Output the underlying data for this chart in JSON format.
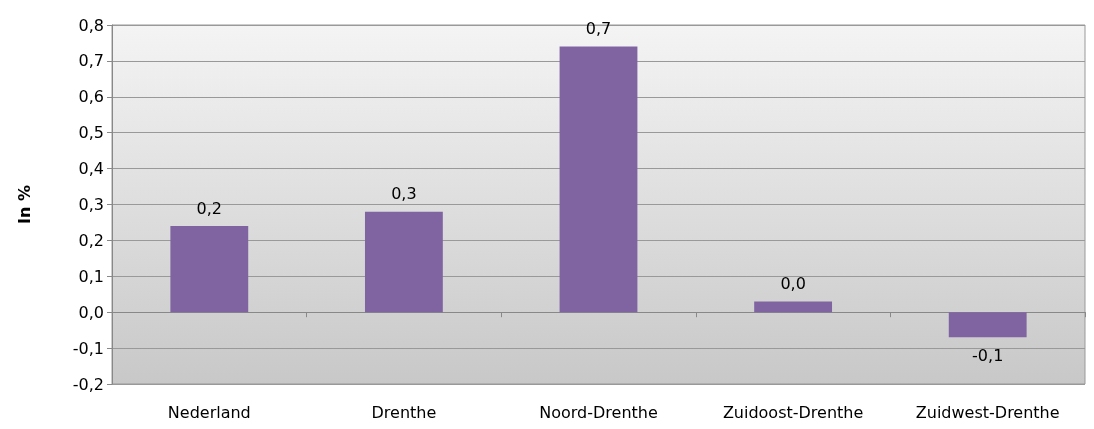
{
  "chart_data": {
    "type": "bar",
    "ylabel": "In %",
    "categories": [
      "Nederland",
      "Drenthe",
      "Noord-Drenthe",
      "Zuidoost-Drenthe",
      "Zuidwest-Drenthe"
    ],
    "values": [
      0.24,
      0.28,
      0.74,
      0.03,
      -0.07
    ],
    "value_labels": [
      "0,2",
      "0,3",
      "0,7",
      "0,0",
      "-0,1"
    ],
    "color": "#8064a2",
    "ylim": [
      -0.2,
      0.8
    ],
    "yticks": [
      {
        "value": -0.2,
        "label": "-0,2"
      },
      {
        "value": -0.1,
        "label": "-0,1"
      },
      {
        "value": 0,
        "label": "0,0"
      },
      {
        "value": 0.1,
        "label": "0,1"
      },
      {
        "value": 0.2,
        "label": "0,2"
      },
      {
        "value": 0.3,
        "label": "0,3"
      },
      {
        "value": 0.4,
        "label": "0,4"
      },
      {
        "value": 0.5,
        "label": "0,5"
      },
      {
        "value": 0.6,
        "label": "0,6"
      },
      {
        "value": 0.7,
        "label": "0,7"
      },
      {
        "value": 0.8,
        "label": "0,8"
      }
    ],
    "grid": "y"
  }
}
